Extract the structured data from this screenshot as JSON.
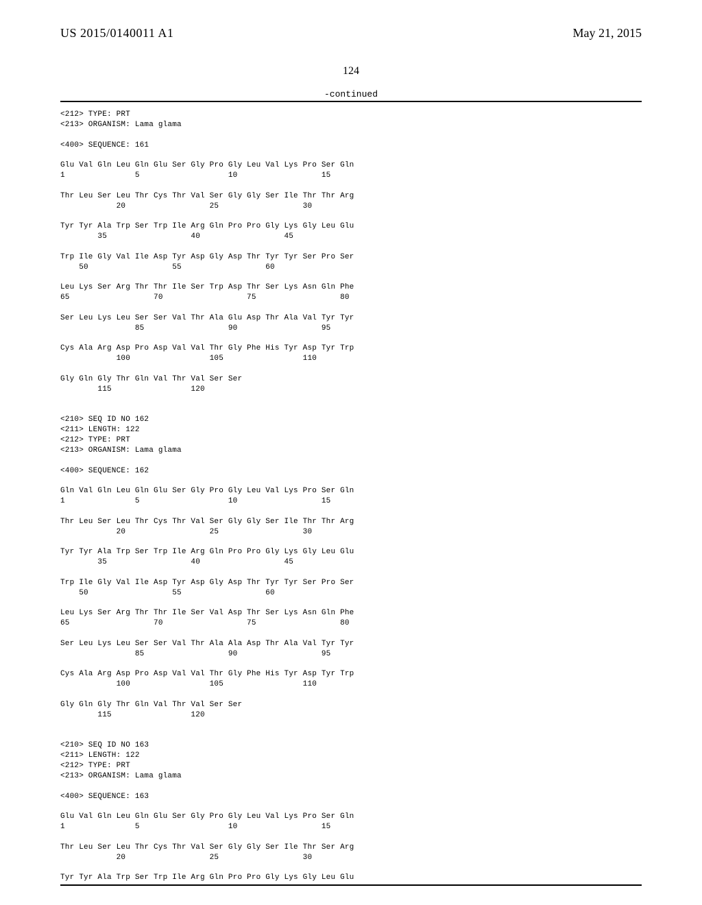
{
  "header": {
    "journal_id": "US 2015/0140011 A1",
    "pub_date": "May 21, 2015",
    "page_number": "124",
    "continued_label": "-continued"
  },
  "colors": {
    "background": "#ffffff",
    "text": "#000000",
    "rule": "#000000"
  },
  "typography": {
    "header_font": "Times New Roman",
    "header_size_pt": 14,
    "body_font": "Courier New",
    "body_size_pt": 8
  },
  "sequence_text": "<212> TYPE: PRT\n<213> ORGANISM: Lama glama\n\n<400> SEQUENCE: 161\n\nGlu Val Gln Leu Gln Glu Ser Gly Pro Gly Leu Val Lys Pro Ser Gln\n1               5                   10                  15\n\nThr Leu Ser Leu Thr Cys Thr Val Ser Gly Gly Ser Ile Thr Thr Arg\n            20                  25                  30\n\nTyr Tyr Ala Trp Ser Trp Ile Arg Gln Pro Pro Gly Lys Gly Leu Glu\n        35                  40                  45\n\nTrp Ile Gly Val Ile Asp Tyr Asp Gly Asp Thr Tyr Tyr Ser Pro Ser\n    50                  55                  60\n\nLeu Lys Ser Arg Thr Thr Ile Ser Trp Asp Thr Ser Lys Asn Gln Phe\n65                  70                  75                  80\n\nSer Leu Lys Leu Ser Ser Val Thr Ala Glu Asp Thr Ala Val Tyr Tyr\n                85                  90                  95\n\nCys Ala Arg Asp Pro Asp Val Val Thr Gly Phe His Tyr Asp Tyr Trp\n            100                 105                 110\n\nGly Gln Gly Thr Gln Val Thr Val Ser Ser\n        115                 120\n\n\n<210> SEQ ID NO 162\n<211> LENGTH: 122\n<212> TYPE: PRT\n<213> ORGANISM: Lama glama\n\n<400> SEQUENCE: 162\n\nGln Val Gln Leu Gln Glu Ser Gly Pro Gly Leu Val Lys Pro Ser Gln\n1               5                   10                  15\n\nThr Leu Ser Leu Thr Cys Thr Val Ser Gly Gly Ser Ile Thr Thr Arg\n            20                  25                  30\n\nTyr Tyr Ala Trp Ser Trp Ile Arg Gln Pro Pro Gly Lys Gly Leu Glu\n        35                  40                  45\n\nTrp Ile Gly Val Ile Asp Tyr Asp Gly Asp Thr Tyr Tyr Ser Pro Ser\n    50                  55                  60\n\nLeu Lys Ser Arg Thr Thr Ile Ser Val Asp Thr Ser Lys Asn Gln Phe\n65                  70                  75                  80\n\nSer Leu Lys Leu Ser Ser Val Thr Ala Ala Asp Thr Ala Val Tyr Tyr\n                85                  90                  95\n\nCys Ala Arg Asp Pro Asp Val Val Thr Gly Phe His Tyr Asp Tyr Trp\n            100                 105                 110\n\nGly Gln Gly Thr Gln Val Thr Val Ser Ser\n        115                 120\n\n\n<210> SEQ ID NO 163\n<211> LENGTH: 122\n<212> TYPE: PRT\n<213> ORGANISM: Lama glama\n\n<400> SEQUENCE: 163\n\nGlu Val Gln Leu Gln Glu Ser Gly Pro Gly Leu Val Lys Pro Ser Gln\n1               5                   10                  15\n\nThr Leu Ser Leu Thr Cys Thr Val Ser Gly Gly Ser Ile Thr Ser Arg\n            20                  25                  30\n\nTyr Tyr Ala Trp Ser Trp Ile Arg Gln Pro Pro Gly Lys Gly Leu Glu"
}
